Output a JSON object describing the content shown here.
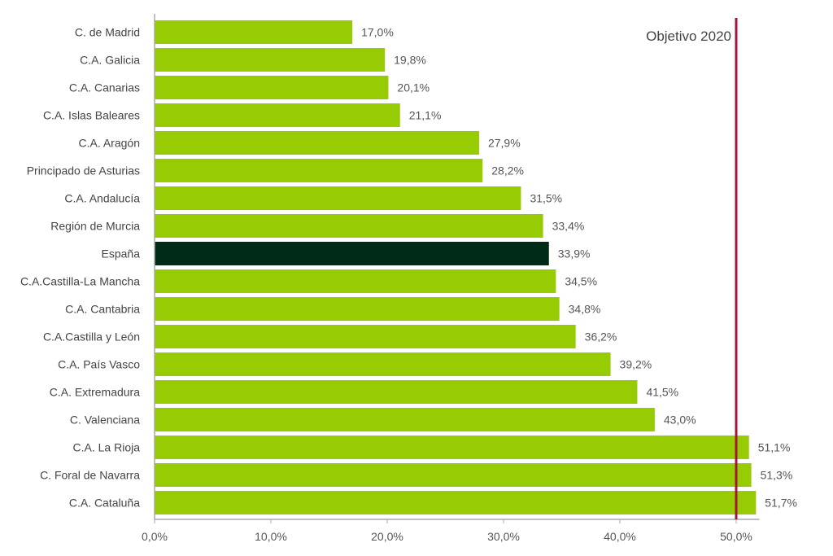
{
  "chart_data": {
    "type": "bar",
    "orientation": "horizontal",
    "title": "",
    "xlabel": "",
    "ylabel": "",
    "xlim": [
      0,
      52
    ],
    "categories": [
      "C. de Madrid",
      "C.A. Galicia",
      "C.A. Canarias",
      "C.A. Islas Baleares",
      "C.A. Aragón",
      "Principado de Asturias",
      "C.A. Andalucía",
      "Región de Murcia",
      "España",
      "C.A.Castilla-La Mancha",
      "C.A. Cantabria",
      "C.A.Castilla y León",
      "C.A. País Vasco",
      "C.A. Extremadura",
      "C. Valenciana",
      "C.A. La Rioja",
      "C. Foral de Navarra",
      "C.A. Cataluña"
    ],
    "values": [
      17.0,
      19.8,
      20.1,
      21.1,
      27.9,
      28.2,
      31.5,
      33.4,
      33.9,
      34.5,
      34.8,
      36.2,
      39.2,
      41.5,
      43.0,
      51.1,
      51.3,
      51.7
    ],
    "value_labels": [
      "17,0%",
      "19,8%",
      "20,1%",
      "21,1%",
      "27,9%",
      "28,2%",
      "31,5%",
      "33,4%",
      "33,9%",
      "34,5%",
      "34,8%",
      "36,2%",
      "39,2%",
      "41,5%",
      "43,0%",
      "51,1%",
      "51,3%",
      "51,7%"
    ],
    "highlight_category": "España",
    "x_ticks": [
      0,
      10,
      20,
      30,
      40,
      50
    ],
    "x_tick_labels": [
      "0,0%",
      "10,0%",
      "20,0%",
      "30,0%",
      "40,0%",
      "50,0%"
    ],
    "reference_line": {
      "value": 50,
      "label": "Objetivo 2020",
      "color": "#a0173a"
    },
    "colors": {
      "bar": "#97cc04",
      "highlight": "#002b17",
      "axis": "#aaaaaa"
    },
    "grid": false,
    "legend": "none"
  }
}
